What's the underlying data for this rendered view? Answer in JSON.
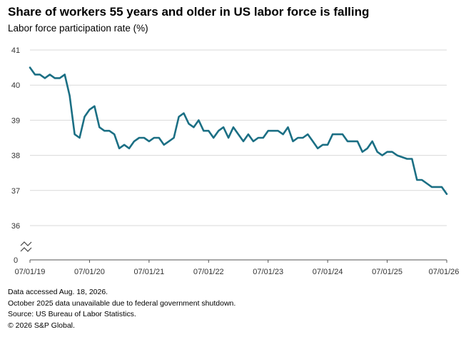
{
  "header": {
    "title": "Share of workers 55 years and older in US labor force is falling",
    "subtitle": "Labor force participation rate (%)"
  },
  "footnotes": [
    "Data accessed Aug. 18, 2026.",
    "October 2025 data unavailable due to federal government shutdown.",
    "Source: US Bureau of Labor Statistics.",
    "© 2026 S&P Global."
  ],
  "chart_data": {
    "type": "line",
    "title": "Share of workers 55 years and older in US labor force is falling",
    "subtitle": "Labor force participation rate (%)",
    "xlabel": "",
    "ylabel": "",
    "x_tick_labels": [
      "07/01/19",
      "07/01/20",
      "07/01/21",
      "07/01/22",
      "07/01/23",
      "07/01/24",
      "07/01/25",
      "07/01/26"
    ],
    "y_tick_labels": [
      "0",
      "36",
      "37",
      "38",
      "39",
      "40",
      "41"
    ],
    "y_axis_break": true,
    "ylim": [
      36,
      41
    ],
    "xlim": [
      "2019-07",
      "2026-07"
    ],
    "grid": true,
    "line_color": "#1b6f84",
    "series": [
      {
        "x": [
          "2019-07",
          "2019-08",
          "2019-09",
          "2019-10",
          "2019-11",
          "2019-12",
          "2020-01",
          "2020-02",
          "2020-03",
          "2020-04",
          "2020-05",
          "2020-06",
          "2020-07",
          "2020-08",
          "2020-09",
          "2020-10",
          "2020-11",
          "2020-12",
          "2021-01",
          "2021-02",
          "2021-03",
          "2021-04",
          "2021-05",
          "2021-06",
          "2021-07",
          "2021-08",
          "2021-09",
          "2021-10",
          "2021-11",
          "2021-12",
          "2022-01",
          "2022-02",
          "2022-03",
          "2022-04",
          "2022-05",
          "2022-06",
          "2022-07",
          "2022-08",
          "2022-09",
          "2022-10",
          "2022-11",
          "2022-12",
          "2023-01",
          "2023-02",
          "2023-03",
          "2023-04",
          "2023-05",
          "2023-06",
          "2023-07",
          "2023-08",
          "2023-09",
          "2023-10",
          "2023-11",
          "2023-12",
          "2024-01",
          "2024-02",
          "2024-03",
          "2024-04",
          "2024-05",
          "2024-06",
          "2024-07",
          "2024-08",
          "2024-09",
          "2024-10",
          "2024-11",
          "2024-12",
          "2025-01",
          "2025-02",
          "2025-03",
          "2025-04",
          "2025-05",
          "2025-06",
          "2025-07",
          "2025-08",
          "2025-09",
          "2025-11",
          "2025-12",
          "2026-01",
          "2026-02",
          "2026-03",
          "2026-04",
          "2026-05",
          "2026-06",
          "2026-07"
        ],
        "values": [
          40.5,
          40.3,
          40.3,
          40.2,
          40.3,
          40.2,
          40.2,
          40.3,
          39.7,
          38.6,
          38.5,
          39.1,
          39.3,
          39.4,
          38.8,
          38.7,
          38.7,
          38.6,
          38.2,
          38.3,
          38.2,
          38.4,
          38.5,
          38.5,
          38.4,
          38.5,
          38.5,
          38.3,
          38.4,
          38.5,
          39.1,
          39.2,
          38.9,
          38.8,
          39.0,
          38.7,
          38.7,
          38.5,
          38.7,
          38.8,
          38.5,
          38.8,
          38.6,
          38.4,
          38.6,
          38.4,
          38.5,
          38.5,
          38.7,
          38.7,
          38.7,
          38.6,
          38.8,
          38.4,
          38.5,
          38.5,
          38.6,
          38.4,
          38.2,
          38.3,
          38.3,
          38.6,
          38.6,
          38.6,
          38.4,
          38.4,
          38.4,
          38.1,
          38.2,
          38.4,
          38.1,
          38.0,
          38.1,
          38.1,
          38.0,
          37.9,
          37.9,
          37.3,
          37.3,
          37.2,
          37.1,
          37.1,
          37.1,
          36.9
        ]
      }
    ]
  }
}
